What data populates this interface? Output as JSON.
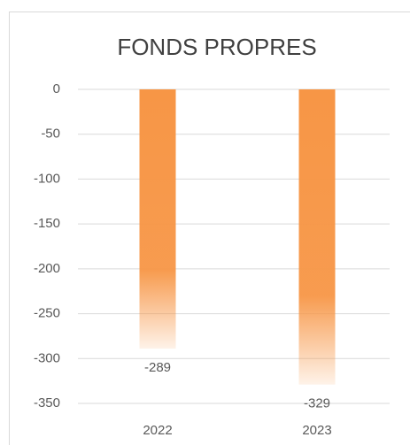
{
  "chart_data": {
    "type": "bar",
    "title": "FONDS PROPRES",
    "categories": [
      "2022",
      "2023"
    ],
    "values": [
      -289,
      -329
    ],
    "color": "#f79646",
    "ylim": [
      -350,
      0
    ],
    "yticks": [
      0,
      -50,
      -100,
      -150,
      -200,
      -250,
      -300,
      -350
    ],
    "grid": true
  }
}
